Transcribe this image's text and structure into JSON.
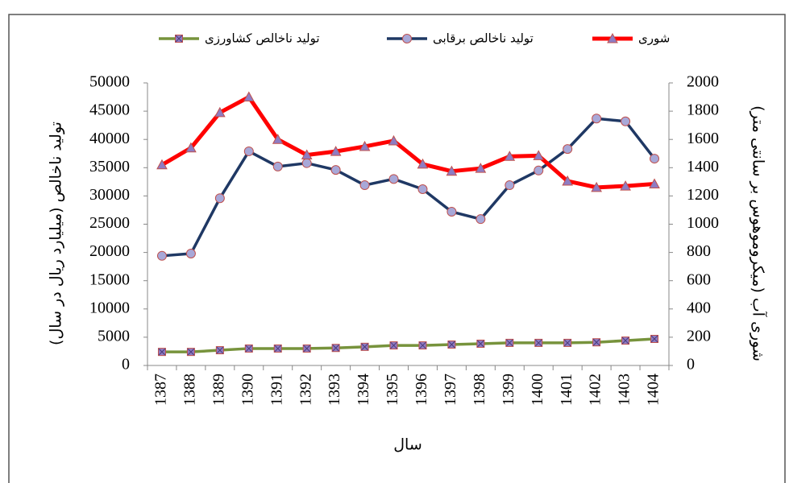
{
  "chart_data": {
    "type": "line",
    "xlabel": "سال",
    "ylabel": "تولید ناخالص (میلیارد ریال در سال)",
    "y2label": "شوری آب (میکروموهوس بر سانتی متر)",
    "categories": [
      "1387",
      "1388",
      "1389",
      "1390",
      "1391",
      "1392",
      "1393",
      "1394",
      "1395",
      "1396",
      "1397",
      "1398",
      "1399",
      "1400",
      "1401",
      "1402",
      "1403",
      "1404"
    ],
    "series": [
      {
        "name": "شوری",
        "color": "#ff0000",
        "axis": "y2",
        "marker": "triangle",
        "values": [
          1420,
          1540,
          1790,
          1900,
          1600,
          1490,
          1515,
          1550,
          1590,
          1425,
          1375,
          1395,
          1480,
          1485,
          1305,
          1260,
          1270,
          1285
        ]
      },
      {
        "name": "تولید ناخالص برقابی",
        "color": "#1f3864",
        "marker": "circle",
        "values": [
          19400,
          19800,
          29600,
          37900,
          35200,
          35800,
          34600,
          31900,
          33000,
          31200,
          27200,
          25900,
          31900,
          34500,
          38300,
          43700,
          43200,
          36600
        ]
      },
      {
        "name": "تولید ناخالص کشاورزی",
        "color": "#77933c",
        "marker": "xsquare",
        "values": [
          2400,
          2400,
          2700,
          3000,
          3000,
          3000,
          3100,
          3300,
          3550,
          3550,
          3700,
          3850,
          4000,
          4000,
          4000,
          4100,
          4400,
          4700
        ]
      }
    ],
    "ylim": [
      0,
      50000
    ],
    "yticks": [
      0,
      5000,
      10000,
      15000,
      20000,
      25000,
      30000,
      35000,
      40000,
      45000,
      50000
    ],
    "y2lim": [
      0,
      2000
    ],
    "y2ticks": [
      0,
      200,
      400,
      600,
      800,
      1000,
      1200,
      1400,
      1600,
      1800,
      2000
    ],
    "grid": false,
    "legend": "top"
  }
}
